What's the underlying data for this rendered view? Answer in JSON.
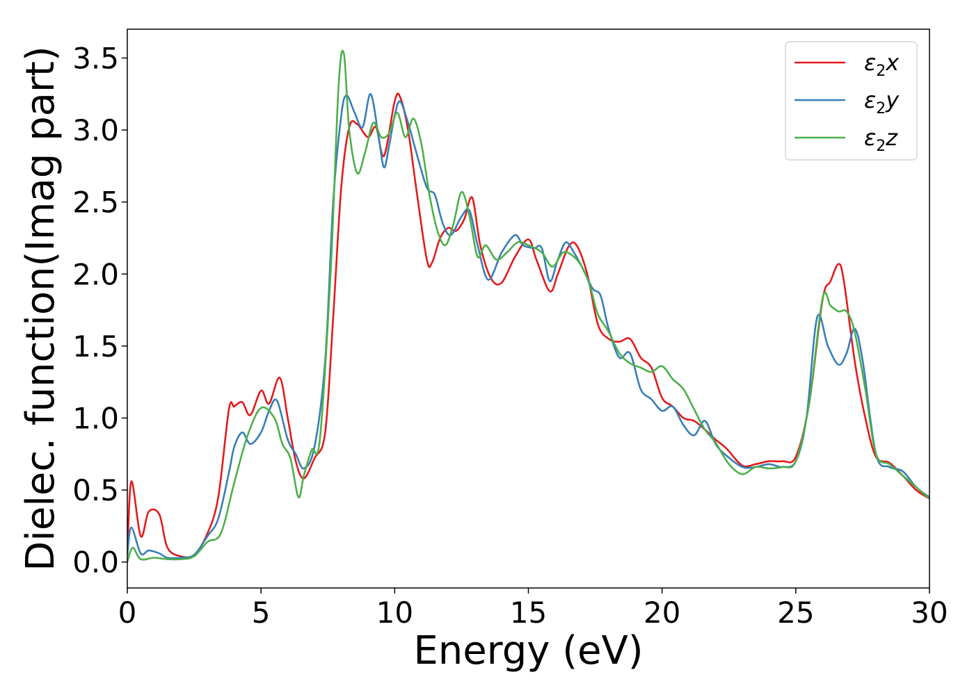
{
  "chart_data": {
    "type": "line",
    "xlabel": "Energy (eV)",
    "ylabel": "Dielec. function(Imag part)",
    "xlim": [
      0,
      30
    ],
    "ylim": [
      -0.18,
      3.7
    ],
    "xticks": [
      0,
      5,
      10,
      15,
      20,
      25,
      30
    ],
    "xtick_labels": [
      "0",
      "5",
      "10",
      "15",
      "20",
      "25",
      "30"
    ],
    "yticks": [
      0.0,
      0.5,
      1.0,
      1.5,
      2.0,
      2.5,
      3.0,
      3.5
    ],
    "ytick_labels": [
      "0.0",
      "0.5",
      "1.0",
      "1.5",
      "2.0",
      "2.5",
      "3.0",
      "3.5"
    ],
    "grid": false,
    "legend_position": "top-right",
    "series": [
      {
        "name": "ε2x",
        "legend_base": "ε",
        "legend_sub": "2",
        "legend_var": "x",
        "color": "#e41a1c",
        "x": [
          0,
          0.15,
          0.5,
          0.8,
          1.2,
          1.5,
          2.0,
          2.5,
          3.0,
          3.4,
          3.8,
          4.0,
          4.3,
          4.6,
          5.0,
          5.3,
          5.7,
          6.0,
          6.3,
          6.6,
          7.0,
          7.4,
          7.7,
          8.0,
          8.3,
          8.6,
          9.0,
          9.3,
          9.6,
          10.0,
          10.2,
          10.5,
          10.8,
          11.2,
          11.4,
          11.7,
          12.0,
          12.3,
          12.6,
          12.9,
          13.2,
          13.6,
          14.0,
          14.5,
          15.0,
          15.3,
          15.8,
          16.1,
          16.5,
          16.8,
          17.2,
          17.6,
          18.0,
          18.4,
          18.8,
          19.2,
          19.6,
          20.0,
          20.4,
          20.8,
          21.2,
          21.6,
          22.0,
          22.4,
          23.0,
          23.5,
          24.0,
          24.5,
          25.0,
          25.5,
          26.0,
          26.3,
          26.6,
          26.8,
          27.2,
          27.6,
          28.0,
          28.5,
          29.0,
          29.5,
          30.0
        ],
        "values": [
          0.05,
          0.56,
          0.18,
          0.35,
          0.33,
          0.1,
          0.04,
          0.05,
          0.2,
          0.45,
          1.06,
          1.08,
          1.11,
          1.02,
          1.19,
          1.1,
          1.28,
          1.0,
          0.7,
          0.58,
          0.72,
          0.9,
          1.7,
          2.6,
          3.02,
          3.04,
          2.95,
          3.02,
          2.82,
          3.2,
          3.23,
          3.0,
          2.6,
          2.1,
          2.08,
          2.25,
          2.32,
          2.3,
          2.38,
          2.53,
          2.2,
          1.97,
          1.94,
          2.12,
          2.24,
          2.1,
          1.88,
          2.0,
          2.19,
          2.2,
          2.0,
          1.65,
          1.55,
          1.53,
          1.55,
          1.42,
          1.35,
          1.14,
          1.08,
          1.0,
          0.98,
          0.92,
          0.85,
          0.79,
          0.67,
          0.68,
          0.7,
          0.7,
          0.73,
          1.1,
          1.82,
          1.95,
          2.07,
          1.95,
          1.4,
          1.0,
          0.73,
          0.69,
          0.6,
          0.5,
          0.44
        ]
      },
      {
        "name": "ε2y",
        "legend_base": "ε",
        "legend_sub": "2",
        "legend_var": "y",
        "color": "#377eb8",
        "x": [
          0,
          0.15,
          0.5,
          0.8,
          1.2,
          1.5,
          2.0,
          2.5,
          3.0,
          3.4,
          3.8,
          4.0,
          4.3,
          4.6,
          5.0,
          5.3,
          5.6,
          6.0,
          6.3,
          6.6,
          7.0,
          7.4,
          7.7,
          8.0,
          8.2,
          8.5,
          8.8,
          9.1,
          9.4,
          9.6,
          9.8,
          10.0,
          10.2,
          10.5,
          10.8,
          11.2,
          11.5,
          11.8,
          12.1,
          12.5,
          12.8,
          13.1,
          13.5,
          14.0,
          14.5,
          14.8,
          15.2,
          15.5,
          15.8,
          16.1,
          16.4,
          16.7,
          17.0,
          17.4,
          17.7,
          18.0,
          18.4,
          18.8,
          19.2,
          19.6,
          20.0,
          20.4,
          20.8,
          21.2,
          21.6,
          22.0,
          22.4,
          23.0,
          23.5,
          24.0,
          24.5,
          25.0,
          25.4,
          25.8,
          26.2,
          26.6,
          26.9,
          27.2,
          27.5,
          28.0,
          28.5,
          29.0,
          29.5,
          30.0
        ],
        "values": [
          0.05,
          0.24,
          0.06,
          0.08,
          0.06,
          0.03,
          0.03,
          0.05,
          0.18,
          0.3,
          0.62,
          0.8,
          0.9,
          0.82,
          0.9,
          1.05,
          1.12,
          0.85,
          0.75,
          0.65,
          0.8,
          1.4,
          2.5,
          3.1,
          3.24,
          3.12,
          3.02,
          3.25,
          2.95,
          2.74,
          2.9,
          3.1,
          3.2,
          3.05,
          2.85,
          2.6,
          2.55,
          2.35,
          2.27,
          2.4,
          2.44,
          2.2,
          1.96,
          2.15,
          2.27,
          2.2,
          2.18,
          2.18,
          1.95,
          2.1,
          2.22,
          2.15,
          2.05,
          1.9,
          1.85,
          1.62,
          1.42,
          1.45,
          1.2,
          1.13,
          1.05,
          1.08,
          0.95,
          0.88,
          0.98,
          0.82,
          0.74,
          0.66,
          0.66,
          0.68,
          0.66,
          0.7,
          1.0,
          1.7,
          1.5,
          1.37,
          1.45,
          1.62,
          1.4,
          0.75,
          0.66,
          0.63,
          0.52,
          0.45
        ]
      },
      {
        "name": "ε2z",
        "legend_base": "ε",
        "legend_sub": "2",
        "legend_var": "z",
        "color": "#4daf4a",
        "x": [
          0,
          0.2,
          0.5,
          1.0,
          1.5,
          2.0,
          2.5,
          3.0,
          3.5,
          4.0,
          4.5,
          5.0,
          5.5,
          5.8,
          6.1,
          6.4,
          6.6,
          6.9,
          7.2,
          7.6,
          7.9,
          8.1,
          8.3,
          8.6,
          8.9,
          9.2,
          9.5,
          9.8,
          10.1,
          10.4,
          10.7,
          11.0,
          11.3,
          11.6,
          11.9,
          12.2,
          12.5,
          12.8,
          13.1,
          13.4,
          13.8,
          14.2,
          14.6,
          15.0,
          15.5,
          15.9,
          16.3,
          16.7,
          17.0,
          17.3,
          17.6,
          18.0,
          18.4,
          18.8,
          19.2,
          19.6,
          20.0,
          20.4,
          20.8,
          21.2,
          21.6,
          22.0,
          22.5,
          23.0,
          23.5,
          24.0,
          24.5,
          25.0,
          25.5,
          26.0,
          26.3,
          26.6,
          26.9,
          27.2,
          27.6,
          28.0,
          28.5,
          29.0,
          29.5,
          30.0
        ],
        "values": [
          0.0,
          0.1,
          0.02,
          0.03,
          0.02,
          0.02,
          0.04,
          0.14,
          0.2,
          0.55,
          0.88,
          1.07,
          1.0,
          0.82,
          0.72,
          0.45,
          0.6,
          0.78,
          0.85,
          2.0,
          3.3,
          3.53,
          3.0,
          2.7,
          2.85,
          3.05,
          2.95,
          2.98,
          3.12,
          2.95,
          3.08,
          2.9,
          2.55,
          2.3,
          2.2,
          2.35,
          2.57,
          2.4,
          2.12,
          2.2,
          2.1,
          2.15,
          2.22,
          2.2,
          2.15,
          2.05,
          2.15,
          2.12,
          2.05,
          1.92,
          1.72,
          1.6,
          1.45,
          1.38,
          1.35,
          1.32,
          1.36,
          1.27,
          1.2,
          1.06,
          0.92,
          0.83,
          0.68,
          0.61,
          0.66,
          0.65,
          0.66,
          0.7,
          1.1,
          1.83,
          1.78,
          1.74,
          1.74,
          1.6,
          1.2,
          0.75,
          0.68,
          0.6,
          0.52,
          0.44
        ]
      }
    ]
  }
}
